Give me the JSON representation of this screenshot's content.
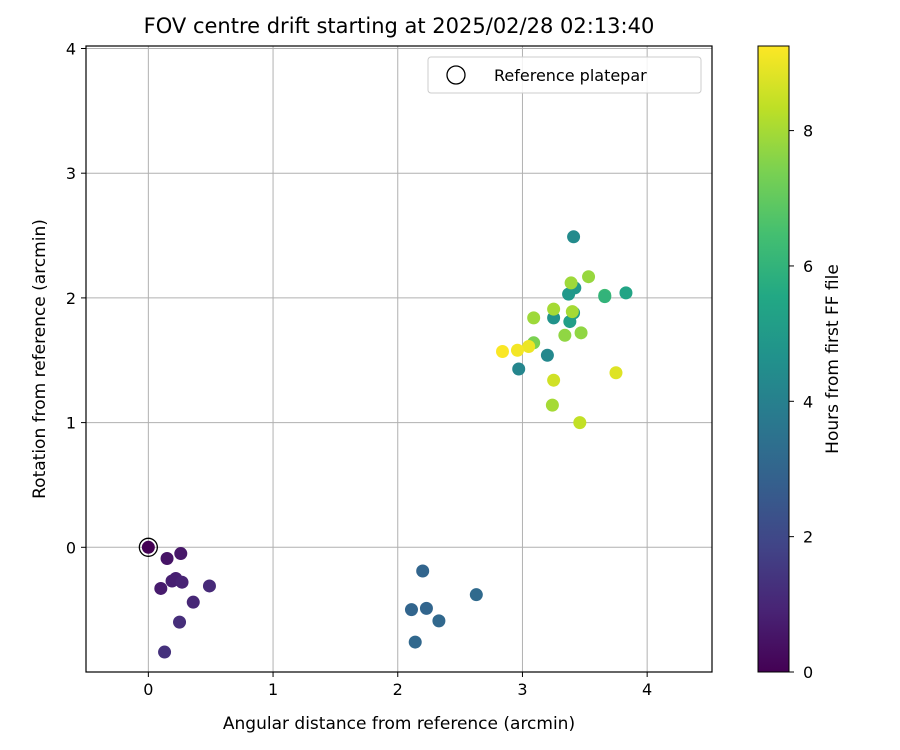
{
  "chart_data": {
    "type": "scatter",
    "title": "FOV centre drift starting at 2025/02/28 02:13:40",
    "xlabel": "Angular distance from reference (arcmin)",
    "ylabel": "Rotation from reference (arcmin)",
    "xlim": [
      -0.5,
      4.52
    ],
    "ylim": [
      -1.0,
      4.02
    ],
    "xticks": [
      0,
      1,
      2,
      3,
      4
    ],
    "yticks": [
      0,
      1,
      2,
      3,
      4
    ],
    "grid": true,
    "legend": {
      "placement": "top-right",
      "entries": [
        "Reference platepar"
      ]
    },
    "reference_point": {
      "x": 0,
      "y": 0
    },
    "colorbar": {
      "label": "Hours from first FF file",
      "colormap": "viridis",
      "range": [
        0,
        9.25
      ],
      "ticks": [
        0,
        2,
        4,
        6,
        8
      ]
    },
    "points": [
      {
        "x": 0.0,
        "y": 0.0,
        "c": 0.0
      },
      {
        "x": 0.15,
        "y": -0.09,
        "c": 0.5
      },
      {
        "x": 0.26,
        "y": -0.05,
        "c": 0.6
      },
      {
        "x": 0.1,
        "y": -0.33,
        "c": 0.7
      },
      {
        "x": 0.19,
        "y": -0.27,
        "c": 0.8
      },
      {
        "x": 0.22,
        "y": -0.25,
        "c": 0.8
      },
      {
        "x": 0.27,
        "y": -0.28,
        "c": 0.9
      },
      {
        "x": 0.36,
        "y": -0.44,
        "c": 1.0
      },
      {
        "x": 0.49,
        "y": -0.31,
        "c": 1.1
      },
      {
        "x": 0.25,
        "y": -0.6,
        "c": 1.2
      },
      {
        "x": 0.13,
        "y": -0.84,
        "c": 1.3
      },
      {
        "x": 2.2,
        "y": -0.19,
        "c": 3.0
      },
      {
        "x": 2.11,
        "y": -0.5,
        "c": 3.0
      },
      {
        "x": 2.23,
        "y": -0.49,
        "c": 3.0
      },
      {
        "x": 2.33,
        "y": -0.59,
        "c": 3.1
      },
      {
        "x": 2.14,
        "y": -0.76,
        "c": 3.1
      },
      {
        "x": 2.63,
        "y": -0.38,
        "c": 3.2
      },
      {
        "x": 2.97,
        "y": 1.43,
        "c": 4.2
      },
      {
        "x": 3.2,
        "y": 1.54,
        "c": 4.3
      },
      {
        "x": 3.41,
        "y": 2.49,
        "c": 4.4
      },
      {
        "x": 3.25,
        "y": 1.84,
        "c": 4.7
      },
      {
        "x": 3.37,
        "y": 2.03,
        "c": 4.9
      },
      {
        "x": 3.42,
        "y": 2.08,
        "c": 4.9
      },
      {
        "x": 3.41,
        "y": 1.88,
        "c": 5.0
      },
      {
        "x": 3.38,
        "y": 1.81,
        "c": 5.2
      },
      {
        "x": 3.83,
        "y": 2.04,
        "c": 5.4
      },
      {
        "x": 3.66,
        "y": 2.02,
        "c": 6.3
      },
      {
        "x": 3.66,
        "y": 2.01,
        "c": 6.0
      },
      {
        "x": 3.09,
        "y": 1.64,
        "c": 7.4
      },
      {
        "x": 3.34,
        "y": 1.7,
        "c": 7.7
      },
      {
        "x": 3.47,
        "y": 1.72,
        "c": 7.7
      },
      {
        "x": 3.53,
        "y": 2.17,
        "c": 7.8
      },
      {
        "x": 3.39,
        "y": 2.12,
        "c": 7.9
      },
      {
        "x": 3.09,
        "y": 1.84,
        "c": 7.9
      },
      {
        "x": 3.25,
        "y": 1.91,
        "c": 8.0
      },
      {
        "x": 3.4,
        "y": 1.89,
        "c": 8.0
      },
      {
        "x": 3.24,
        "y": 1.14,
        "c": 8.0
      },
      {
        "x": 3.46,
        "y": 1.0,
        "c": 8.4
      },
      {
        "x": 3.25,
        "y": 1.34,
        "c": 8.6
      },
      {
        "x": 3.75,
        "y": 1.4,
        "c": 8.8
      },
      {
        "x": 3.05,
        "y": 1.61,
        "c": 9.0
      },
      {
        "x": 2.96,
        "y": 1.58,
        "c": 9.1
      },
      {
        "x": 2.84,
        "y": 1.57,
        "c": 9.2
      }
    ]
  }
}
